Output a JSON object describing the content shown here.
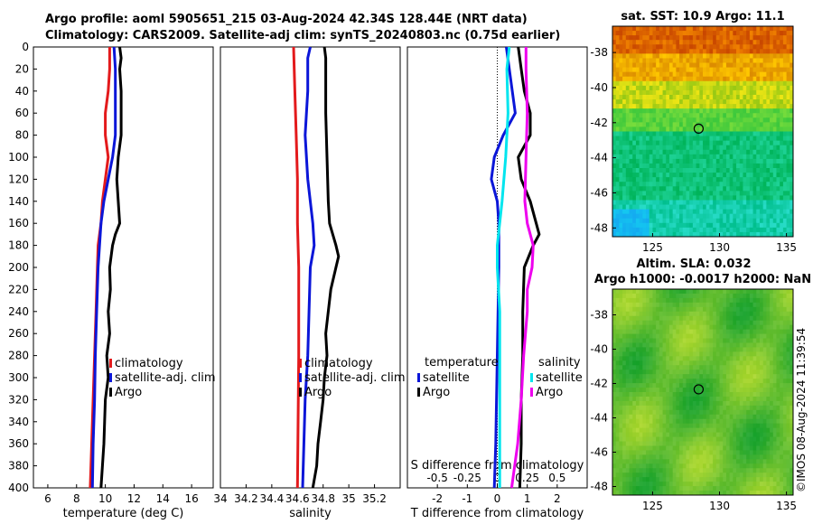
{
  "title": {
    "line1": "Argo profile: aoml 5905651_215 03-Aug-2024 42.34S 128.44E (NRT data)",
    "line2": "Climatology: CARS2009. Satellite-adj clim: synTS_20240803.nc (0.75d earlier)"
  },
  "colors": {
    "climatology": "#e31a1c",
    "satellite": "#0b16d8",
    "argo": "#000000",
    "sal_satellite": "#00e5ee",
    "sal_argo": "#ee00ee"
  },
  "chart_data": [
    {
      "type": "line",
      "id": "temperature-panel",
      "xlabel": "temperature (deg C)",
      "ylabel": "",
      "xlim": [
        5,
        17.5
      ],
      "ylim": [
        0,
        400
      ],
      "xticks": [
        6,
        8,
        10,
        12,
        14,
        16
      ],
      "yticks": [
        0,
        20,
        40,
        60,
        80,
        100,
        120,
        140,
        160,
        180,
        200,
        220,
        240,
        260,
        280,
        300,
        320,
        340,
        360,
        380,
        400
      ],
      "legend": [
        "climatology",
        "satellite-adj. clim",
        "Argo"
      ],
      "series": [
        {
          "name": "climatology",
          "depth": [
            0,
            20,
            40,
            60,
            80,
            100,
            120,
            140,
            160,
            180,
            200,
            240,
            280,
            320,
            360,
            400
          ],
          "values": [
            10.3,
            10.3,
            10.2,
            10.0,
            10.0,
            10.2,
            10.0,
            9.8,
            9.7,
            9.5,
            9.45,
            9.35,
            9.25,
            9.15,
            9.05,
            8.95
          ]
        },
        {
          "name": "satellite-adj. clim",
          "depth": [
            0,
            20,
            40,
            60,
            80,
            100,
            120,
            140,
            160,
            180,
            200,
            240,
            280,
            320,
            360,
            400
          ],
          "values": [
            10.6,
            10.7,
            10.7,
            10.7,
            10.7,
            10.5,
            10.2,
            9.9,
            9.7,
            9.6,
            9.5,
            9.4,
            9.3,
            9.25,
            9.15,
            9.1
          ]
        },
        {
          "name": "Argo",
          "depth": [
            0,
            10,
            20,
            40,
            60,
            80,
            100,
            120,
            140,
            160,
            170,
            180,
            190,
            200,
            220,
            240,
            260,
            280,
            300,
            320,
            340,
            360,
            380,
            400
          ],
          "values": [
            11.0,
            11.1,
            11.0,
            11.1,
            11.1,
            11.1,
            10.9,
            10.8,
            10.9,
            11.0,
            10.7,
            10.5,
            10.4,
            10.3,
            10.35,
            10.2,
            10.3,
            10.1,
            10.2,
            10.0,
            9.95,
            9.9,
            9.8,
            9.7
          ]
        }
      ]
    },
    {
      "type": "line",
      "id": "salinity-panel",
      "xlabel": "salinity",
      "xlim": [
        34,
        35.4
      ],
      "ylim": [
        0,
        400
      ],
      "xticks": [
        34,
        34.2,
        34.4,
        34.6,
        34.8,
        35,
        35.2
      ],
      "legend": [
        "climatology",
        "satellite-adj. clim",
        "Argo"
      ],
      "series": [
        {
          "name": "climatology",
          "depth": [
            0,
            40,
            80,
            120,
            160,
            200,
            280,
            400
          ],
          "values": [
            34.57,
            34.58,
            34.59,
            34.6,
            34.6,
            34.61,
            34.61,
            34.6
          ]
        },
        {
          "name": "satellite-adj. clim",
          "depth": [
            0,
            10,
            40,
            80,
            120,
            160,
            180,
            200,
            240,
            280,
            320,
            360,
            400
          ],
          "values": [
            34.7,
            34.68,
            34.68,
            34.66,
            34.68,
            34.72,
            34.73,
            34.7,
            34.69,
            34.68,
            34.66,
            34.65,
            34.64
          ]
        },
        {
          "name": "Argo",
          "depth": [
            0,
            10,
            20,
            60,
            100,
            140,
            160,
            180,
            190,
            200,
            220,
            240,
            260,
            280,
            300,
            320,
            340,
            360,
            380,
            400
          ],
          "values": [
            34.81,
            34.82,
            34.82,
            34.82,
            34.83,
            34.84,
            34.85,
            34.9,
            34.92,
            34.9,
            34.86,
            34.84,
            34.82,
            34.83,
            34.81,
            34.8,
            34.78,
            34.76,
            34.75,
            34.72
          ]
        }
      ]
    },
    {
      "type": "line",
      "id": "difference-panel",
      "xlabel": "T difference from climatology",
      "xlabel_top": "S difference from climatology",
      "xlim": [
        -3,
        3
      ],
      "ylim": [
        0,
        400
      ],
      "xticks": [
        -2,
        -1,
        0,
        1,
        2
      ],
      "xticks_s": [
        "-0.5",
        "-0.25",
        "0",
        "0.25",
        "0.5"
      ],
      "legend_t": [
        "temperature",
        "satellite",
        "Argo"
      ],
      "legend_s": [
        "salinity",
        "satellite",
        "Argo"
      ],
      "series": [
        {
          "name": "T satellite",
          "depth": [
            0,
            20,
            40,
            60,
            80,
            100,
            120,
            140,
            160,
            200,
            280,
            360,
            400
          ],
          "values": [
            0.3,
            0.4,
            0.5,
            0.6,
            0.2,
            -0.1,
            -0.2,
            0.0,
            0.05,
            0.05,
            0.0,
            -0.05,
            -0.1
          ]
        },
        {
          "name": "T Argo",
          "depth": [
            0,
            20,
            40,
            60,
            80,
            100,
            120,
            140,
            160,
            170,
            180,
            200,
            240,
            280,
            320,
            360,
            400
          ],
          "values": [
            0.7,
            0.8,
            0.9,
            1.1,
            1.1,
            0.7,
            0.8,
            1.1,
            1.3,
            1.4,
            1.2,
            0.9,
            0.85,
            0.85,
            0.8,
            0.8,
            0.75
          ]
        },
        {
          "name": "S satellite",
          "depth": [
            0,
            20,
            60,
            100,
            140,
            180,
            200,
            240,
            280,
            320,
            360,
            400
          ],
          "values": [
            0.1,
            0.08,
            0.09,
            0.07,
            0.04,
            0.0,
            0.0,
            0.02,
            0.02,
            0.02,
            0.02,
            0.02
          ]
        },
        {
          "name": "S Argo",
          "depth": [
            0,
            20,
            60,
            100,
            140,
            160,
            180,
            200,
            220,
            240,
            280,
            320,
            360,
            400
          ],
          "values": [
            0.24,
            0.24,
            0.25,
            0.24,
            0.23,
            0.25,
            0.3,
            0.29,
            0.25,
            0.25,
            0.22,
            0.2,
            0.17,
            0.12
          ]
        }
      ]
    },
    {
      "type": "heatmap",
      "id": "sst-map",
      "title": "sat. SST: 10.9 Argo: 11.1",
      "xlim": [
        122,
        135.5
      ],
      "ylim": [
        -48.5,
        -36.5
      ],
      "xticks": [
        125,
        130,
        135
      ],
      "yticks": [
        -38,
        -40,
        -42,
        -44,
        -46,
        -48
      ],
      "marker": {
        "lon": 128.44,
        "lat": -42.34
      }
    },
    {
      "type": "heatmap",
      "id": "sla-map",
      "title_line1": "Altim. SLA: 0.032",
      "title_line2": "Argo h1000: -0.0017 h2000: NaN",
      "xlim": [
        122,
        135.5
      ],
      "ylim": [
        -48.5,
        -36.5
      ],
      "xticks": [
        125,
        130,
        135
      ],
      "yticks": [
        -38,
        -40,
        -42,
        -44,
        -46,
        -48
      ],
      "marker": {
        "lon": 128.44,
        "lat": -42.34
      }
    }
  ],
  "footer": {
    "credit": "©IMOS 08-Aug-2024 11:39:54"
  }
}
